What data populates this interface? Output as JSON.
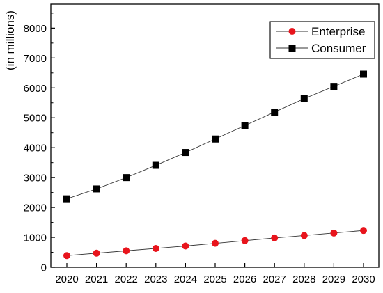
{
  "chart_data": {
    "type": "line",
    "title": "",
    "xlabel": "",
    "ylabel": "(in millions)",
    "x": [
      "2020",
      "2021",
      "2022",
      "2023",
      "2024",
      "2025",
      "2026",
      "2027",
      "2028",
      "2029",
      "2030"
    ],
    "ylim": [
      0,
      8800
    ],
    "yticks": [
      "0",
      "1000",
      "2000",
      "3000",
      "4000",
      "5000",
      "6000",
      "7000",
      "8000"
    ],
    "grid": false,
    "legend_position": "top-right",
    "series": [
      {
        "name": "Enterprise",
        "marker": "circle",
        "color": "#e8141c",
        "values": [
          390,
          470,
          550,
          630,
          710,
          800,
          890,
          980,
          1060,
          1145,
          1230
        ]
      },
      {
        "name": "Consumer",
        "marker": "square",
        "color": "#000000",
        "values": [
          2290,
          2620,
          3000,
          3410,
          3840,
          4290,
          4740,
          5190,
          5640,
          6050,
          6460
        ]
      }
    ]
  }
}
